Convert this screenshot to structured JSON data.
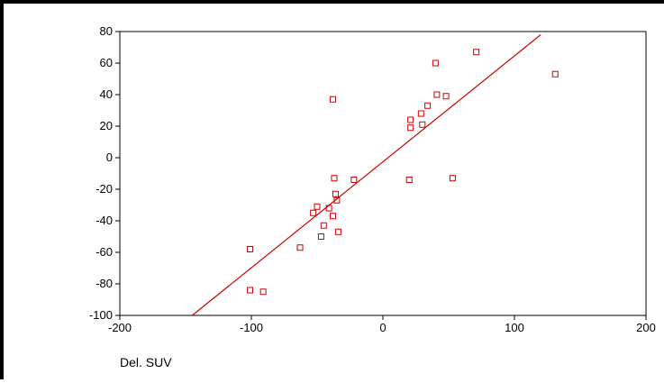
{
  "chart_data": {
    "type": "scatter",
    "xlabel": "Del. SUV",
    "ylabel": "",
    "title": "",
    "xlim": [
      -200,
      200
    ],
    "ylim": [
      -100,
      80
    ],
    "xticks": [
      -200,
      -100,
      0,
      100,
      200
    ],
    "yticks": [
      -100,
      -80,
      -60,
      -40,
      -20,
      0,
      20,
      40,
      60,
      80
    ],
    "grid": false,
    "marker_color": "#cc0000",
    "line_color": "#cc0000",
    "series": [
      {
        "points": [
          [
            -101,
            -58
          ],
          [
            -101,
            -84
          ],
          [
            -91,
            -85
          ],
          [
            -63,
            -57
          ],
          [
            -53,
            -35
          ],
          [
            -50,
            -31
          ],
          [
            -47,
            -50
          ],
          [
            -45,
            -43
          ],
          [
            -41,
            -32
          ],
          [
            -38,
            -37
          ],
          [
            -38,
            37
          ],
          [
            -37,
            -13
          ],
          [
            -36,
            -23
          ],
          [
            -35,
            -27
          ],
          [
            -34,
            -47
          ],
          [
            -22,
            -14
          ],
          [
            20,
            -14
          ],
          [
            21,
            19
          ],
          [
            21,
            24
          ],
          [
            29,
            28
          ],
          [
            30,
            21
          ],
          [
            34,
            33
          ],
          [
            40,
            60
          ],
          [
            41,
            40
          ],
          [
            48,
            39
          ],
          [
            53,
            -13
          ],
          [
            71,
            67
          ],
          [
            131,
            53
          ]
        ]
      }
    ],
    "fit_line": {
      "x": [
        -145,
        120
      ],
      "y": [
        -100,
        78
      ]
    }
  }
}
